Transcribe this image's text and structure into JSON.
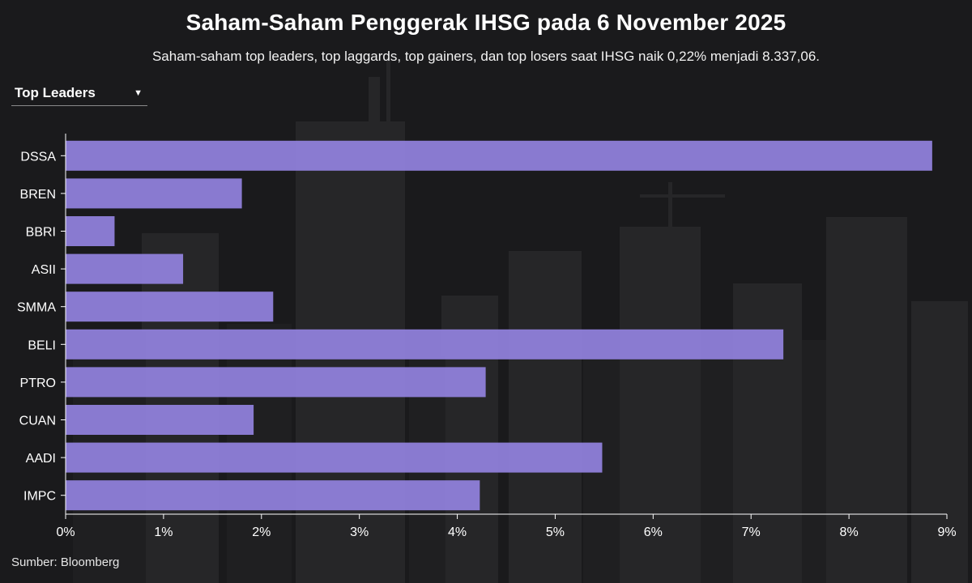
{
  "title": "Saham-Saham Penggerak IHSG pada 6 November 2025",
  "subtitle": "Saham-saham top leaders, top laggards, top gainers, dan top losers saat IHSG naik 0,22% menjadi 8.337,06.",
  "dropdown": {
    "selected": "Top Leaders",
    "caret_icon": "chevron-down-icon"
  },
  "source": "Sumber: Bloomberg",
  "colors": {
    "bar": "#8f7fda",
    "axis": "#ffffff",
    "background": "#1a1a1c"
  },
  "chart_data": {
    "type": "bar",
    "orientation": "horizontal",
    "categories": [
      "DSSA",
      "BREN",
      "BBRI",
      "ASII",
      "SMMA",
      "BELI",
      "PTRO",
      "CUAN",
      "AADI",
      "IMPC"
    ],
    "values": [
      8.85,
      1.8,
      0.5,
      1.2,
      2.12,
      7.33,
      4.29,
      1.92,
      5.48,
      4.23
    ],
    "xlim": [
      0,
      9
    ],
    "xticks": [
      "0%",
      "1%",
      "2%",
      "3%",
      "4%",
      "5%",
      "6%",
      "7%",
      "8%",
      "9%"
    ],
    "grid": false,
    "xlabel": "",
    "ylabel": ""
  }
}
